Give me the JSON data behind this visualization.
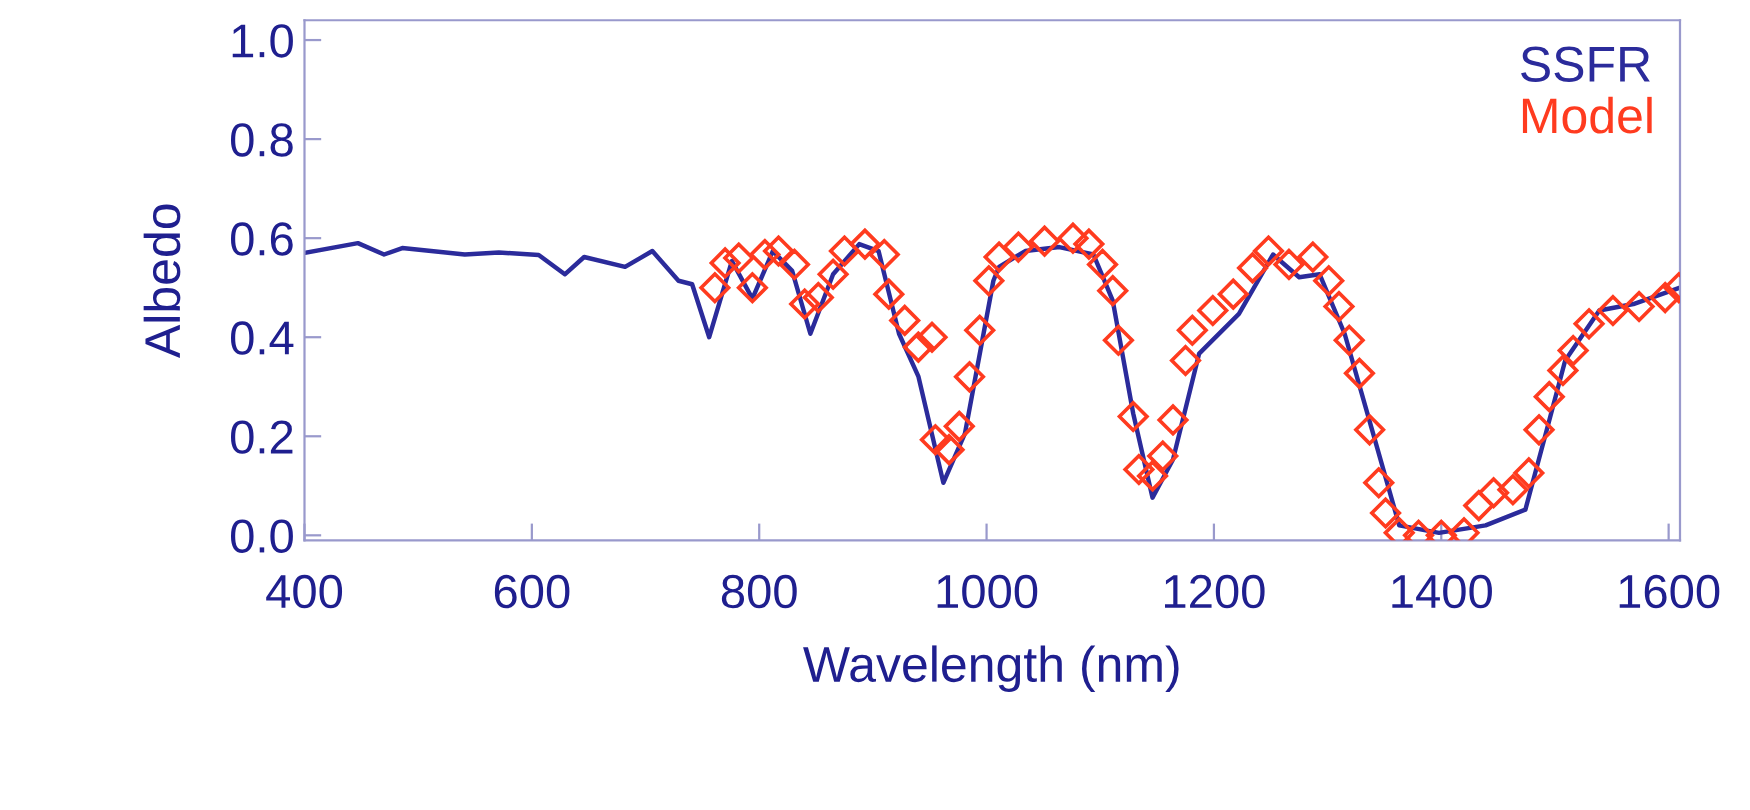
{
  "chart_data": {
    "type": "line",
    "xlabel": "Wavelength (nm)",
    "ylabel": "Albedo",
    "xlim": [
      400,
      1610
    ],
    "xticks": [
      400,
      600,
      800,
      1000,
      1200,
      1400,
      1600
    ],
    "ylim": [
      -0.01,
      1.04
    ],
    "yticks": [
      {
        "value": 0,
        "label": "0.0"
      },
      {
        "value": 0.2,
        "label": "0.2"
      },
      {
        "value": 0.4,
        "label": "0.4"
      },
      {
        "value": 0.6,
        "label": "0.6"
      },
      {
        "value": 0.8,
        "label": "0.8"
      },
      {
        "value": 1,
        "label": "1.0"
      }
    ],
    "grid": false,
    "legend": "top right",
    "series": [
      {
        "name": "SSFR",
        "color": "#2b2b9b",
        "marker": "none",
        "line_style": "solid",
        "x": [
          400,
          447,
          470,
          486,
          541,
          571,
          606,
          629,
          646,
          682,
          706,
          729,
          741,
          756,
          776,
          794,
          812,
          829,
          845,
          865,
          888,
          905,
          923,
          940,
          962,
          981,
          1006,
          1011,
          1034,
          1064,
          1094,
          1111,
          1129,
          1146,
          1164,
          1187,
          1222,
          1252,
          1275,
          1293,
          1315,
          1340,
          1363,
          1398,
          1439,
          1474,
          1492,
          1509,
          1539,
          1569,
          1610
        ],
        "values": [
          0.57,
          0.59,
          0.567,
          0.58,
          0.567,
          0.571,
          0.566,
          0.527,
          0.562,
          0.542,
          0.574,
          0.514,
          0.507,
          0.4,
          0.554,
          0.478,
          0.574,
          0.534,
          0.407,
          0.527,
          0.588,
          0.574,
          0.407,
          0.321,
          0.106,
          0.206,
          0.514,
          0.542,
          0.574,
          0.582,
          0.567,
          0.474,
          0.246,
          0.076,
          0.153,
          0.367,
          0.447,
          0.567,
          0.521,
          0.527,
          0.407,
          0.206,
          0.02,
          0.005,
          0.02,
          0.052,
          0.206,
          0.353,
          0.454,
          0.467,
          0.5
        ]
      },
      {
        "name": "Model",
        "type": "scatter",
        "color": "#ff3b1f",
        "marker": "diamond",
        "x": [
          761,
          770,
          782,
          794,
          805,
          817,
          831,
          840,
          852,
          865,
          875,
          893,
          910,
          914,
          928,
          940,
          952,
          955,
          967,
          976,
          985,
          994,
          1002,
          1011,
          1028,
          1051,
          1076,
          1090,
          1102,
          1111,
          1116,
          1129,
          1134,
          1146,
          1155,
          1164,
          1175,
          1181,
          1199,
          1217,
          1234,
          1248,
          1266,
          1287,
          1301,
          1310,
          1319,
          1328,
          1337,
          1345,
          1351,
          1363,
          1380,
          1400,
          1420,
          1433,
          1446,
          1463,
          1477,
          1486,
          1495,
          1507,
          1516,
          1530,
          1551,
          1574,
          1597,
          1609
        ],
        "values": [
          0.5,
          0.55,
          0.56,
          0.5,
          0.567,
          0.574,
          0.547,
          0.467,
          0.48,
          0.527,
          0.574,
          0.588,
          0.567,
          0.487,
          0.434,
          0.38,
          0.4,
          0.193,
          0.173,
          0.22,
          0.32,
          0.414,
          0.514,
          0.562,
          0.582,
          0.594,
          0.6,
          0.588,
          0.547,
          0.494,
          0.394,
          0.24,
          0.133,
          0.12,
          0.16,
          0.233,
          0.353,
          0.414,
          0.454,
          0.487,
          0.54,
          0.574,
          0.547,
          0.562,
          0.514,
          0.462,
          0.394,
          0.327,
          0.213,
          0.106,
          0.045,
          0.005,
          0.0,
          0.0,
          0.005,
          0.06,
          0.086,
          0.092,
          0.126,
          0.213,
          0.28,
          0.333,
          0.373,
          0.427,
          0.454,
          0.462,
          0.48,
          0.5
        ]
      }
    ]
  }
}
